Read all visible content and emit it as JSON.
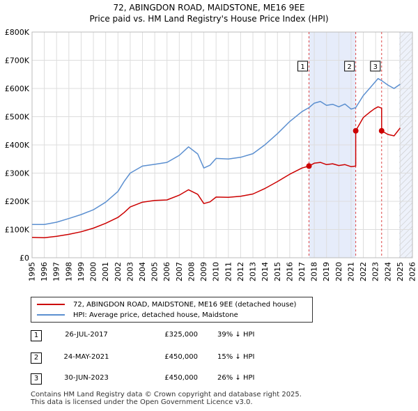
{
  "chart_data": {
    "type": "line",
    "title": "72, ABINGDON ROAD, MAIDSTONE, ME16 9EE",
    "subtitle": "Price paid vs. HM Land Registry's House Price Index (HPI)",
    "xlim": [
      1995,
      2026
    ],
    "ylim": [
      0,
      800000
    ],
    "x_ticks": [
      "1995",
      "1996",
      "1997",
      "1998",
      "1999",
      "2000",
      "2001",
      "2002",
      "2003",
      "2004",
      "2005",
      "2006",
      "2007",
      "2008",
      "2009",
      "2010",
      "2011",
      "2012",
      "2013",
      "2014",
      "2015",
      "2016",
      "2017",
      "2018",
      "2019",
      "2020",
      "2021",
      "2022",
      "2023",
      "2024",
      "2025",
      "2026"
    ],
    "y_ticks": [
      {
        "value": 0,
        "label": "£0"
      },
      {
        "value": 100000,
        "label": "£100K"
      },
      {
        "value": 200000,
        "label": "£200K"
      },
      {
        "value": 300000,
        "label": "£300K"
      },
      {
        "value": 400000,
        "label": "£400K"
      },
      {
        "value": 500000,
        "label": "£500K"
      },
      {
        "value": 600000,
        "label": "£600K"
      },
      {
        "value": 700000,
        "label": "£700K"
      },
      {
        "value": 800000,
        "label": "£800K"
      }
    ],
    "series": [
      {
        "name": "72, ABINGDON ROAD, MAIDSTONE, ME16 9EE (detached house)",
        "color": "#cc0000",
        "x": [
          1995.0,
          1996.0,
          1997.0,
          1998.0,
          1999.0,
          2000.0,
          2001.0,
          2002.0,
          2002.5,
          2003.0,
          2004.0,
          2005.0,
          2006.0,
          2007.0,
          2007.75,
          2008.5,
          2009.0,
          2009.5,
          2010.0,
          2011.0,
          2012.0,
          2013.0,
          2014.0,
          2015.0,
          2016.0,
          2017.0,
          2017.57,
          2018.0,
          2018.5,
          2019.0,
          2019.5,
          2020.0,
          2020.5,
          2021.0,
          2021.38,
          2021.38,
          2022.0,
          2022.5,
          2022.9,
          2023.2,
          2023.49,
          2023.49,
          2024.0,
          2024.5,
          2025.0
        ],
        "values": [
          72000,
          71000,
          76000,
          83000,
          92000,
          105000,
          122000,
          143000,
          160000,
          180000,
          197000,
          203000,
          205000,
          222000,
          241000,
          225000,
          192000,
          198000,
          215000,
          214000,
          218000,
          226000,
          246000,
          270000,
          296000,
          318000,
          325000,
          335000,
          338000,
          330000,
          333000,
          327000,
          330000,
          323000,
          325000,
          450000,
          497000,
          515000,
          528000,
          535000,
          530000,
          450000,
          437000,
          432000,
          460000
        ]
      },
      {
        "name": "HPI: Average price, detached house, Maidstone",
        "color": "#5b8fd0",
        "x": [
          1995.0,
          1996.0,
          1997.0,
          1998.0,
          1999.0,
          2000.0,
          2001.0,
          2002.0,
          2002.5,
          2003.0,
          2004.0,
          2005.0,
          2006.0,
          2007.0,
          2007.75,
          2008.5,
          2009.0,
          2009.5,
          2010.0,
          2011.0,
          2012.0,
          2013.0,
          2014.0,
          2015.0,
          2016.0,
          2017.0,
          2017.57,
          2018.0,
          2018.5,
          2019.0,
          2019.5,
          2020.0,
          2020.5,
          2021.0,
          2021.38,
          2022.0,
          2022.5,
          2022.9,
          2023.2,
          2023.49,
          2024.0,
          2024.5,
          2025.0
        ],
        "values": [
          118000,
          118000,
          126000,
          139000,
          153000,
          170000,
          197000,
          235000,
          270000,
          300000,
          325000,
          331000,
          338000,
          363000,
          393000,
          368000,
          318000,
          328000,
          352000,
          350000,
          356000,
          369000,
          401000,
          440000,
          483000,
          518000,
          532000,
          548000,
          554000,
          540000,
          544000,
          535000,
          545000,
          527000,
          532000,
          575000,
          600000,
          620000,
          635000,
          628000,
          612000,
          600000,
          615000
        ]
      }
    ],
    "shaded_periods": [
      {
        "from": 2017.57,
        "to": 2021.38
      },
      {
        "from": 2024.92,
        "to": 2026.0,
        "hatched": true
      }
    ],
    "sales": [
      {
        "label": "1",
        "date": "26-JUL-2017",
        "x": 2017.57,
        "price": "£325,000",
        "value": 325000,
        "hpi": "39% ↓ HPI"
      },
      {
        "label": "2",
        "date": "24-MAY-2021",
        "x": 2021.38,
        "price": "£450,000",
        "value": 450000,
        "hpi": "15% ↓ HPI"
      },
      {
        "label": "3",
        "date": "30-JUN-2023",
        "x": 2023.49,
        "price": "£450,000",
        "value": 450000,
        "hpi": "26% ↓ HPI"
      }
    ]
  },
  "legend": {
    "property_label": "72, ABINGDON ROAD, MAIDSTONE, ME16 9EE (detached house)",
    "hpi_label": "HPI: Average price, detached house, Maidstone"
  },
  "footer": {
    "line1": "Contains HM Land Registry data © Crown copyright and database right 2025.",
    "line2": "This data is licensed under the Open Government Licence v3.0."
  }
}
